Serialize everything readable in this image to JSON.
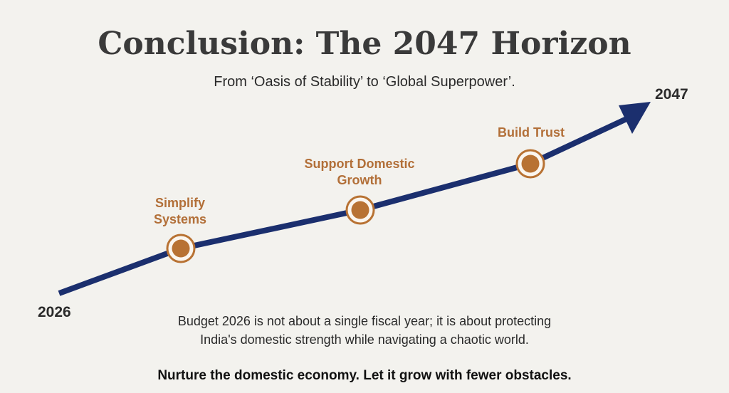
{
  "slide": {
    "title": "Conclusion: The 2047 Horizon",
    "subtitle": "From ‘Oasis of Stability’ to ‘Global Superpower’.",
    "body_line_1": "Budget 2026 is not about a single fiscal year; it is about protecting",
    "body_line_2": "India's domestic strength while navigating a chaotic world.",
    "closing": "Nurture the domestic economy. Let it grow with fewer obstacles."
  },
  "timeline": {
    "start_year": "2026",
    "end_year": "2047",
    "milestones": [
      {
        "label_line_1": "Simplify",
        "label_line_2": "Systems"
      },
      {
        "label_line_1": "Support Domestic",
        "label_line_2": "Growth"
      },
      {
        "label_line_1": "Build Trust",
        "label_line_2": ""
      }
    ]
  },
  "colors": {
    "background": "#f3f2ee",
    "arrow": "#1b2f6e",
    "milestone_fill": "#b87233",
    "milestone_ring": "#fbf6ef",
    "milestone_label": "#b26f38",
    "title": "#3a3a3a"
  }
}
